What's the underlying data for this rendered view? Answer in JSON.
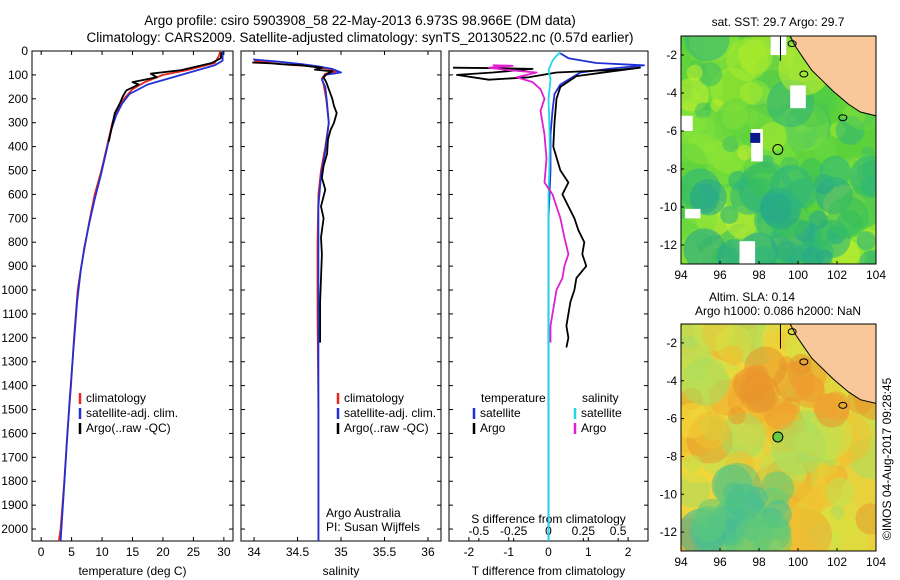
{
  "title_line1": "Argo profile: csiro 5903908_58 22-May-2013 6.973S 98.966E (DM data)",
  "title_line2": "Climatology: CARS2009. Satellite-adjusted climatology: synTS_20130522.nc (0.57d earlier)",
  "stamp": "©IMOS 04-Aug-2017 09:28:45",
  "colors": {
    "climatology": "#e8261e",
    "satellite": "#2130d6",
    "argo": "#000000",
    "sal_satellite": "#22d8e6",
    "sal_argo": "#e020d0",
    "land": "#f8c89a",
    "marker": "#0a1a8a"
  },
  "chart_data": [
    {
      "type": "line",
      "id": "temperature",
      "xlabel": "temperature (deg C)",
      "ylabel": "",
      "xlim": [
        -1.5,
        31.5
      ],
      "ylim": [
        2050,
        0
      ],
      "xticks": [
        0,
        5,
        10,
        15,
        20,
        25,
        30
      ],
      "yticks": [
        0,
        100,
        200,
        300,
        400,
        500,
        600,
        700,
        800,
        900,
        1000,
        1100,
        1200,
        1300,
        1400,
        1500,
        1600,
        1700,
        1800,
        1900,
        2000
      ],
      "legend": [
        "climatology",
        "satellite-adj. clim.",
        "Argo(..raw -QC)"
      ],
      "series": [
        {
          "name": "climatology",
          "color": "climatology",
          "points": [
            [
              29.4,
              0
            ],
            [
              29.2,
              20
            ],
            [
              28.5,
              50
            ],
            [
              24,
              80
            ],
            [
              20,
              100
            ],
            [
              17,
              130
            ],
            [
              15,
              160
            ],
            [
              13.6,
              200
            ],
            [
              12.5,
              250
            ],
            [
              11.7,
              300
            ],
            [
              10.8,
              400
            ],
            [
              9.9,
              500
            ],
            [
              8.8,
              600
            ],
            [
              8,
              700
            ],
            [
              7.3,
              800
            ],
            [
              6.6,
              900
            ],
            [
              6,
              1000
            ],
            [
              5.4,
              1200
            ],
            [
              4.9,
              1400
            ],
            [
              4.3,
              1600
            ],
            [
              3.8,
              1800
            ],
            [
              3.2,
              2000
            ],
            [
              2.9,
              2050
            ]
          ]
        },
        {
          "name": "satellite-adj. clim.",
          "color": "satellite",
          "points": [
            [
              29.8,
              0
            ],
            [
              29.8,
              40
            ],
            [
              28.5,
              60
            ],
            [
              23,
              100
            ],
            [
              17.5,
              140
            ],
            [
              14.5,
              180
            ],
            [
              13.3,
              220
            ],
            [
              12.3,
              270
            ],
            [
              11.5,
              330
            ],
            [
              10.7,
              420
            ],
            [
              9.8,
              520
            ],
            [
              8.8,
              620
            ],
            [
              7.9,
              720
            ],
            [
              7.1,
              820
            ],
            [
              6.5,
              920
            ],
            [
              5.9,
              1050
            ],
            [
              5.3,
              1250
            ],
            [
              4.7,
              1450
            ],
            [
              4.2,
              1650
            ],
            [
              3.7,
              1850
            ],
            [
              3.2,
              2050
            ]
          ]
        },
        {
          "name": "Argo(..raw -QC)",
          "color": "argo",
          "points": [
            [
              29.6,
              5
            ],
            [
              29.5,
              30
            ],
            [
              28,
              50
            ],
            [
              23,
              80
            ],
            [
              18,
              95
            ],
            [
              19,
              110
            ],
            [
              15,
              130
            ],
            [
              16,
              140
            ],
            [
              14,
              165
            ],
            [
              13.4,
              190
            ],
            [
              13,
              215
            ],
            [
              12.6,
              235
            ],
            [
              12.1,
              260
            ],
            [
              11.8,
              295
            ],
            [
              11.6,
              320
            ],
            [
              11.1,
              380
            ]
          ]
        }
      ]
    },
    {
      "type": "line",
      "id": "salinity",
      "xlabel": "salinity",
      "xlim": [
        33.85,
        36.15
      ],
      "ylim": [
        2050,
        0
      ],
      "xticks": [
        34,
        34.5,
        35,
        35.5,
        36
      ],
      "legend": [
        "climatology",
        "satellite-adj. clim.",
        "Argo(..raw -QC)"
      ],
      "notes": [
        "Argo Australia",
        "PI: Susan Wijffels"
      ],
      "series": [
        {
          "name": "climatology",
          "color": "climatology",
          "points": [
            [
              34.0,
              40
            ],
            [
              34.2,
              50
            ],
            [
              34.4,
              58
            ],
            [
              34.6,
              62
            ],
            [
              34.85,
              75
            ],
            [
              34.95,
              85
            ],
            [
              34.82,
              95
            ],
            [
              34.78,
              115
            ],
            [
              34.8,
              140
            ],
            [
              34.83,
              200
            ],
            [
              34.86,
              300
            ],
            [
              34.82,
              400
            ],
            [
              34.77,
              500
            ],
            [
              34.74,
              600
            ],
            [
              34.73,
              800
            ],
            [
              34.73,
              1100
            ],
            [
              34.74,
              1500
            ],
            [
              34.74,
              2050
            ]
          ]
        },
        {
          "name": "satellite-adj. clim.",
          "color": "satellite",
          "points": [
            [
              33.99,
              35
            ],
            [
              34.3,
              45
            ],
            [
              34.55,
              55
            ],
            [
              34.72,
              63
            ],
            [
              34.9,
              75
            ],
            [
              35.0,
              90
            ],
            [
              34.82,
              100
            ],
            [
              34.78,
              120
            ],
            [
              34.82,
              150
            ],
            [
              34.84,
              220
            ],
            [
              34.86,
              300
            ],
            [
              34.82,
              420
            ],
            [
              34.77,
              520
            ],
            [
              34.74,
              650
            ],
            [
              34.74,
              900
            ],
            [
              34.74,
              1300
            ],
            [
              34.74,
              1700
            ],
            [
              34.74,
              2050
            ]
          ]
        },
        {
          "name": "Argo(..raw -QC)",
          "color": "argo",
          "points": [
            [
              33.98,
              48
            ],
            [
              34.2,
              52
            ],
            [
              34.3,
              55
            ],
            [
              34.55,
              60
            ],
            [
              34.62,
              63
            ],
            [
              34.78,
              70
            ],
            [
              34.7,
              78
            ],
            [
              34.9,
              85
            ],
            [
              34.84,
              95
            ],
            [
              34.8,
              110
            ],
            [
              34.83,
              130
            ],
            [
              34.86,
              160
            ],
            [
              34.9,
              200
            ],
            [
              34.92,
              230
            ],
            [
              34.95,
              260
            ],
            [
              34.92,
              300
            ],
            [
              34.88,
              330
            ],
            [
              34.85,
              370
            ],
            [
              34.84,
              430
            ],
            [
              34.8,
              480
            ],
            [
              34.78,
              530
            ],
            [
              34.82,
              580
            ],
            [
              34.77,
              650
            ],
            [
              34.8,
              700
            ],
            [
              34.77,
              780
            ],
            [
              34.78,
              850
            ],
            [
              34.77,
              950
            ],
            [
              34.76,
              1050
            ],
            [
              34.76,
              1150
            ],
            [
              34.76,
              1220
            ]
          ]
        }
      ]
    },
    {
      "type": "line",
      "id": "difference",
      "xlabel": "T difference from climatology",
      "xlabel_top": "S difference from climatology",
      "xlim": [
        -2.5,
        2.5
      ],
      "ylim": [
        2050,
        0
      ],
      "xticks_bottom": [
        {
          "value": -2,
          "label": "-2"
        },
        {
          "value": -1,
          "label": "-1"
        },
        {
          "value": 0,
          "label": "0"
        },
        {
          "value": 1,
          "label": "1"
        },
        {
          "value": 2,
          "label": "2"
        }
      ],
      "xticks_top": [
        {
          "value": -1.75,
          "label": "-0.5"
        },
        {
          "value": -0.875,
          "label": "-0.25"
        },
        {
          "value": 0,
          "label": "0"
        },
        {
          "value": 0.875,
          "label": "0.25"
        },
        {
          "value": 1.75,
          "label": "0.5"
        }
      ],
      "legend_temperature_title": "temperature",
      "legend_salinity_title": "salinity",
      "legend_temperature": [
        "satellite",
        "Argo"
      ],
      "legend_salinity": [
        "satellite",
        "Argo"
      ],
      "series": [
        {
          "name": "satellite",
          "group": "temperature",
          "color": "satellite",
          "points": [
            [
              0.3,
              10
            ],
            [
              0.5,
              30
            ],
            [
              1.2,
              50
            ],
            [
              2.4,
              60
            ],
            [
              1.5,
              75
            ],
            [
              0.8,
              90
            ],
            [
              0.6,
              110
            ],
            [
              0.3,
              140
            ],
            [
              0.15,
              180
            ],
            [
              0.1,
              250
            ],
            [
              0.05,
              350
            ],
            [
              0.05,
              500
            ],
            [
              0,
              700
            ],
            [
              0,
              1000
            ],
            [
              0,
              1500
            ],
            [
              0,
              2050
            ]
          ]
        },
        {
          "name": "Argo",
          "group": "temperature",
          "color": "argo",
          "points": [
            [
              -2.4,
              70
            ],
            [
              -1.3,
              72
            ],
            [
              -0.4,
              75
            ],
            [
              -1.4,
              90
            ],
            [
              -2.3,
              100
            ],
            [
              -1.5,
              120
            ],
            [
              -0.5,
              110
            ],
            [
              0.2,
              90
            ],
            [
              1.8,
              78
            ],
            [
              2.3,
              70
            ],
            [
              1.6,
              85
            ],
            [
              0.7,
              105
            ],
            [
              0.3,
              150
            ],
            [
              0.2,
              200
            ],
            [
              0.15,
              300
            ],
            [
              0.12,
              400
            ],
            [
              0.3,
              500
            ],
            [
              0.5,
              550
            ],
            [
              0.35,
              600
            ],
            [
              0.5,
              650
            ],
            [
              0.65,
              700
            ],
            [
              0.75,
              750
            ],
            [
              0.9,
              800
            ],
            [
              0.85,
              850
            ],
            [
              0.95,
              900
            ],
            [
              0.7,
              950
            ],
            [
              0.65,
              1000
            ],
            [
              0.55,
              1050
            ],
            [
              0.5,
              1100
            ],
            [
              0.45,
              1150
            ],
            [
              0.5,
              1200
            ],
            [
              0.45,
              1240
            ]
          ]
        },
        {
          "name": "satellite",
          "group": "salinity",
          "color": "sal_satellite",
          "points": [
            [
              0.3,
              5
            ],
            [
              0.2,
              20
            ],
            [
              0.1,
              40
            ],
            [
              0.05,
              60
            ],
            [
              0,
              80
            ],
            [
              0.05,
              120
            ],
            [
              0,
              200
            ],
            [
              0.02,
              300
            ],
            [
              0.03,
              400
            ],
            [
              0.02,
              500
            ],
            [
              0,
              600
            ],
            [
              0,
              800
            ],
            [
              0,
              1000
            ],
            [
              0,
              1200
            ],
            [
              0,
              1500
            ],
            [
              0,
              2050
            ]
          ]
        },
        {
          "name": "Argo",
          "group": "salinity",
          "color": "sal_argo",
          "points": [
            [
              -1.4,
              60
            ],
            [
              -0.9,
              62
            ],
            [
              -1.5,
              70
            ],
            [
              -1.0,
              80
            ],
            [
              -0.3,
              90
            ],
            [
              -0.8,
              110
            ],
            [
              -0.4,
              130
            ],
            [
              -0.2,
              160
            ],
            [
              -0.1,
              200
            ],
            [
              -0.2,
              250
            ],
            [
              -0.1,
              350
            ],
            [
              -0.05,
              450
            ],
            [
              -0.1,
              550
            ],
            [
              0.1,
              600
            ],
            [
              0.2,
              650
            ],
            [
              0.3,
              700
            ],
            [
              0.4,
              780
            ],
            [
              0.5,
              850
            ],
            [
              0.4,
              900
            ],
            [
              0.35,
              950
            ],
            [
              0.2,
              1000
            ],
            [
              0.15,
              1050
            ],
            [
              0.1,
              1100
            ],
            [
              0.05,
              1150
            ],
            [
              0.05,
              1220
            ]
          ]
        }
      ]
    },
    {
      "type": "heatmap",
      "id": "sst-map",
      "title": "sat. SST: 29.7 Argo: 29.7",
      "xticks": [
        94,
        96,
        98,
        100,
        102,
        104
      ],
      "yticks": [
        -2,
        -4,
        -6,
        -8,
        -10,
        -12
      ],
      "xlim": [
        94,
        104
      ],
      "ylim": [
        -13,
        -1
      ],
      "argo_position": [
        98.966,
        -6.973
      ]
    },
    {
      "type": "heatmap",
      "id": "sla-map",
      "title_line1": "Altim. SLA: 0.14",
      "title_line2": "Argo h1000: 0.086 h2000: NaN",
      "xticks": [
        94,
        96,
        98,
        100,
        102,
        104
      ],
      "yticks": [
        -2,
        -4,
        -6,
        -8,
        -10,
        -12
      ],
      "xlim": [
        94,
        104
      ],
      "ylim": [
        -13,
        -1
      ],
      "argo_position": [
        98.966,
        -6.973
      ]
    }
  ]
}
